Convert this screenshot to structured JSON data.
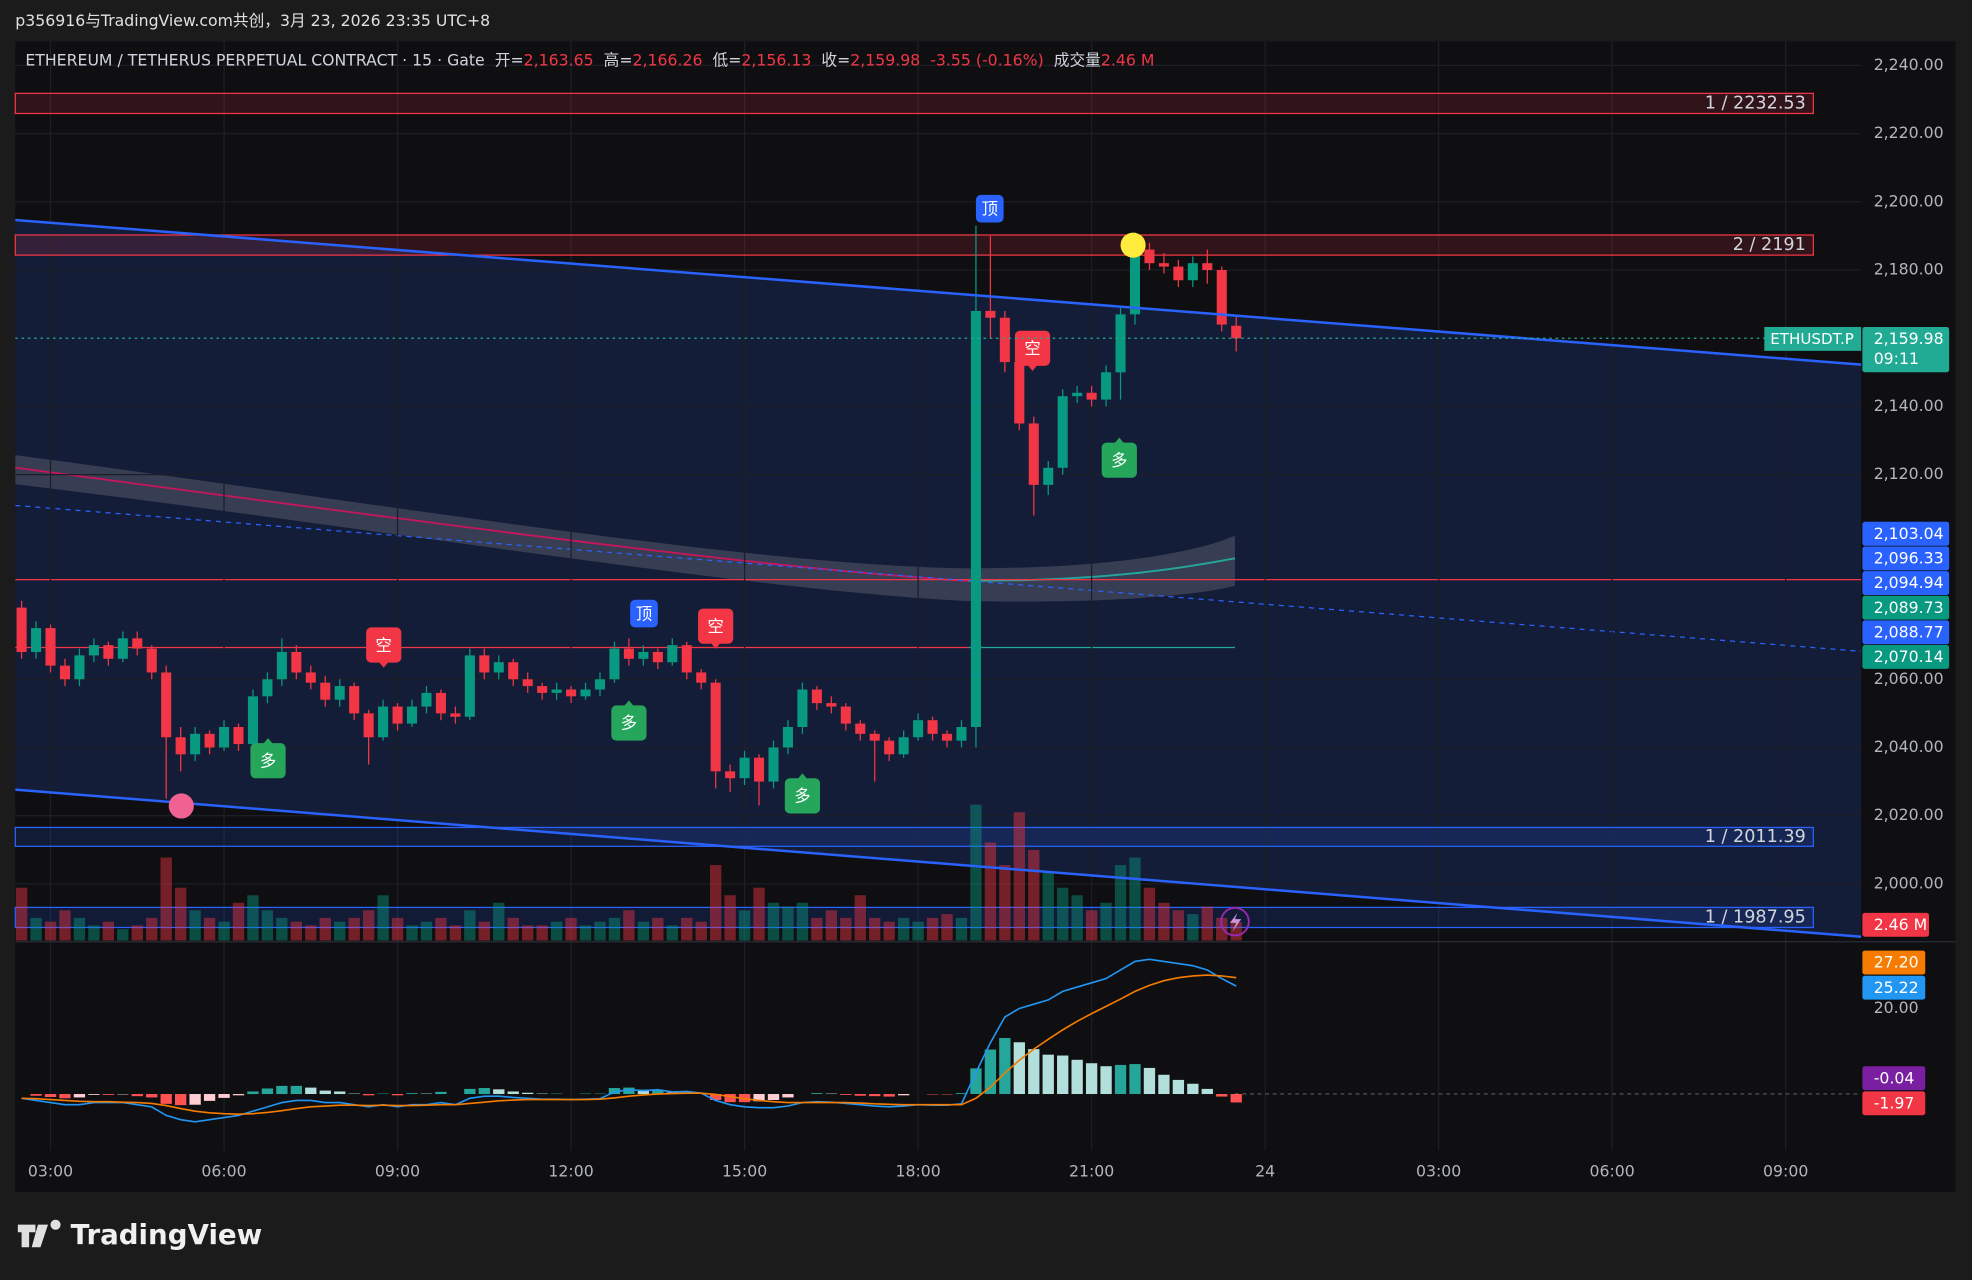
{
  "header": {
    "watermark_line": "p356916与TradingView.com共创，3月 23, 2026 23:35 UTC+8"
  },
  "footer": {
    "brand": "TradingView"
  },
  "chart_data": {
    "type": "candlestick",
    "title": "ETHEREUM / TETHERUS PERPETUAL CONTRACT · 15 · Gate",
    "legend": [
      {
        "label": "开=",
        "value": "2,163.65"
      },
      {
        "label": "高=",
        "value": "2,166.26"
      },
      {
        "label": "低=",
        "value": "2,156.13"
      },
      {
        "label": "收=",
        "value": "2,159.98"
      }
    ],
    "change": "-3.55 (-0.16%)",
    "volume_legend": {
      "label": "成交量",
      "value": "2.46 M"
    },
    "up_color": "#089981",
    "down_color": "#f23645",
    "ylim": [
      1983.4,
      2247
    ],
    "yticks": [
      {
        "value": 2240,
        "label": "2,240.00"
      },
      {
        "value": 2220,
        "label": "2,220.00"
      },
      {
        "value": 2200,
        "label": "2,200.00"
      },
      {
        "value": 2180,
        "label": "2,180.00"
      },
      {
        "value": 2140,
        "label": "2,140.00"
      },
      {
        "value": 2120,
        "label": "2,120.00"
      },
      {
        "value": 2060,
        "label": "2,060.00"
      },
      {
        "value": 2040,
        "label": "2,040.00"
      },
      {
        "value": 2020,
        "label": "2,020.00"
      },
      {
        "value": 2000,
        "label": "2,000.00"
      }
    ],
    "grid": true,
    "x_labels": [
      "03:00",
      "06:00",
      "09:00",
      "12:00",
      "15:00",
      "18:00",
      "21:00",
      "24",
      "03:00",
      "06:00",
      "09:00"
    ],
    "candles": [
      [
        2081,
        2083,
        2066,
        2068
      ],
      [
        2068,
        2077,
        2066,
        2075
      ],
      [
        2075,
        2076,
        2062,
        2064
      ],
      [
        2064,
        2066,
        2058,
        2060
      ],
      [
        2060,
        2069,
        2058,
        2067
      ],
      [
        2067,
        2072,
        2065,
        2070
      ],
      [
        2070,
        2071,
        2064,
        2066
      ],
      [
        2066,
        2074,
        2065,
        2072
      ],
      [
        2072,
        2074,
        2067,
        2069
      ],
      [
        2069,
        2070,
        2060,
        2062
      ],
      [
        2062,
        2064,
        2025,
        2043
      ],
      [
        2043,
        2046,
        2033,
        2038
      ],
      [
        2038,
        2046,
        2036,
        2044
      ],
      [
        2044,
        2045,
        2038,
        2040
      ],
      [
        2040,
        2048,
        2039,
        2046
      ],
      [
        2046,
        2047,
        2039,
        2041
      ],
      [
        2041,
        2057,
        2040,
        2055
      ],
      [
        2055,
        2062,
        2053,
        2060
      ],
      [
        2060,
        2072,
        2058,
        2068
      ],
      [
        2068,
        2070,
        2060,
        2062
      ],
      [
        2062,
        2064,
        2057,
        2059
      ],
      [
        2059,
        2061,
        2052,
        2054
      ],
      [
        2054,
        2060,
        2052,
        2058
      ],
      [
        2058,
        2059,
        2048,
        2050
      ],
      [
        2050,
        2051,
        2035,
        2043
      ],
      [
        2043,
        2054,
        2042,
        2052
      ],
      [
        2052,
        2053,
        2045,
        2047
      ],
      [
        2047,
        2054,
        2046,
        2052
      ],
      [
        2052,
        2058,
        2050,
        2056
      ],
      [
        2056,
        2057,
        2048,
        2050
      ],
      [
        2050,
        2052,
        2047,
        2049
      ],
      [
        2049,
        2069,
        2048,
        2067
      ],
      [
        2067,
        2069,
        2060,
        2062
      ],
      [
        2062,
        2067,
        2060,
        2065
      ],
      [
        2065,
        2066,
        2058,
        2060
      ],
      [
        2060,
        2062,
        2056,
        2058
      ],
      [
        2058,
        2059,
        2054,
        2056
      ],
      [
        2056,
        2059,
        2054,
        2057
      ],
      [
        2057,
        2058,
        2053,
        2055
      ],
      [
        2055,
        2059,
        2054,
        2057
      ],
      [
        2057,
        2062,
        2055,
        2060
      ],
      [
        2060,
        2071,
        2059,
        2069
      ],
      [
        2069,
        2072,
        2064,
        2066
      ],
      [
        2066,
        2070,
        2064,
        2068
      ],
      [
        2068,
        2069,
        2063,
        2065
      ],
      [
        2065,
        2072,
        2064,
        2070
      ],
      [
        2070,
        2071,
        2060,
        2062
      ],
      [
        2062,
        2063,
        2057,
        2059
      ],
      [
        2059,
        2060,
        2028,
        2033
      ],
      [
        2033,
        2035,
        2027,
        2031
      ],
      [
        2031,
        2039,
        2029,
        2037
      ],
      [
        2037,
        2038,
        2023,
        2030
      ],
      [
        2030,
        2042,
        2028,
        2040
      ],
      [
        2040,
        2048,
        2038,
        2046
      ],
      [
        2046,
        2059,
        2044,
        2057
      ],
      [
        2057,
        2058,
        2051,
        2053
      ],
      [
        2053,
        2055,
        2050,
        2052
      ],
      [
        2052,
        2053,
        2045,
        2047
      ],
      [
        2047,
        2048,
        2042,
        2044
      ],
      [
        2044,
        2045,
        2030,
        2042
      ],
      [
        2042,
        2043,
        2036,
        2038
      ],
      [
        2038,
        2045,
        2037,
        2043
      ],
      [
        2043,
        2050,
        2042,
        2048
      ],
      [
        2048,
        2049,
        2042,
        2044
      ],
      [
        2044,
        2045,
        2040,
        2042
      ],
      [
        2042,
        2048,
        2040,
        2046
      ],
      [
        2046,
        2193,
        2040,
        2168
      ],
      [
        2168,
        2190,
        2160,
        2166
      ],
      [
        2166,
        2168,
        2150,
        2153
      ],
      [
        2153,
        2155,
        2133,
        2135
      ],
      [
        2135,
        2137,
        2108,
        2117
      ],
      [
        2117,
        2124,
        2114,
        2122
      ],
      [
        2122,
        2145,
        2120,
        2143
      ],
      [
        2143,
        2146,
        2141,
        2144
      ],
      [
        2144,
        2146,
        2140,
        2142
      ],
      [
        2142,
        2152,
        2140,
        2150
      ],
      [
        2150,
        2169,
        2142,
        2167
      ],
      [
        2167,
        2191,
        2164,
        2186
      ],
      [
        2186,
        2188,
        2180,
        2182
      ],
      [
        2182,
        2185,
        2179,
        2181
      ],
      [
        2181,
        2183,
        2175,
        2177
      ],
      [
        2177,
        2184,
        2175,
        2182
      ],
      [
        2182,
        2186,
        2176,
        2180
      ],
      [
        2180,
        2181,
        2162,
        2164
      ],
      [
        2163.65,
        2166.26,
        2156.13,
        2159.98
      ]
    ],
    "zones": [
      {
        "label": "1 / 2232.53",
        "value": 2232.53,
        "color": "#f23645"
      },
      {
        "label": "2 / 2191",
        "value": 2191,
        "color": "#f23645"
      },
      {
        "label": "1 / 2011.39",
        "value": 2011.39,
        "color": "#2962ff"
      },
      {
        "label": "1 / 1987.95",
        "value": 1987.95,
        "color": "#2962ff"
      }
    ],
    "last_price": {
      "symbol": "ETHUSDT.P",
      "value": 2159.98,
      "label": "2,159.98",
      "countdown": "09:11",
      "color": "#22ab94"
    },
    "axis_badges": [
      {
        "label": "2,103.04",
        "color": "#2962ff"
      },
      {
        "label": "2,096.33",
        "color": "#2962ff"
      },
      {
        "label": "2,094.94",
        "color": "#2962ff"
      },
      {
        "label": "2,089.73",
        "color": "#089981"
      },
      {
        "label": "2,088.77",
        "color": "#2962ff"
      },
      {
        "label": "2,070.14",
        "color": "#089981"
      }
    ],
    "signals": [
      {
        "text": "空",
        "color": "#f23645"
      },
      {
        "text": "空",
        "color": "#f23645"
      },
      {
        "text": "空",
        "color": "#f23645"
      },
      {
        "text": "顶",
        "color": "#2962ff"
      },
      {
        "text": "顶",
        "color": "#2962ff"
      },
      {
        "text": "多",
        "color": "#26a65b"
      },
      {
        "text": "多",
        "color": "#26a65b"
      },
      {
        "text": "多",
        "color": "#26a65b"
      },
      {
        "text": "多",
        "color": "#26a65b"
      }
    ],
    "volume": {
      "values": [
        7,
        3,
        2.5,
        4,
        3,
        2,
        2.5,
        1.5,
        2,
        3,
        11,
        7,
        4,
        3,
        2.5,
        5,
        6,
        4,
        3,
        2.5,
        2,
        3,
        2.5,
        3,
        4,
        6,
        3,
        2,
        2.5,
        3,
        2,
        4,
        2.5,
        5,
        3,
        2,
        2,
        2.5,
        3,
        2,
        2.5,
        3,
        4,
        2.5,
        3,
        2,
        3,
        2.5,
        10,
        6,
        4,
        7,
        5,
        4.5,
        5,
        3,
        4,
        3,
        6,
        3,
        2.5,
        3,
        2.5,
        3,
        3.5,
        3,
        18,
        13,
        10,
        17,
        12,
        9,
        7,
        6,
        4,
        5,
        10,
        11,
        7,
        5,
        4,
        3.5,
        4.5,
        3,
        2.46
      ],
      "last_label": "2.46 M",
      "color": "#f23645"
    },
    "macd": {
      "ylim": [
        -13.2,
        35.3
      ],
      "yticks": [
        {
          "value": 20,
          "label": "20.00"
        }
      ],
      "macd": [
        -1,
        -1.5,
        -2,
        -2.5,
        -2.5,
        -2,
        -2,
        -2,
        -2.5,
        -3,
        -5,
        -6,
        -6.5,
        -6,
        -5.5,
        -5,
        -4,
        -3,
        -2,
        -1.5,
        -1.5,
        -2,
        -2,
        -2.5,
        -3,
        -2.5,
        -3,
        -2.5,
        -2.5,
        -2,
        -2.5,
        -1,
        -0.5,
        -0.5,
        -0.8,
        -1,
        -1.2,
        -1.2,
        -1.3,
        -1.2,
        -1.1,
        0.5,
        1,
        0.8,
        1,
        0.5,
        0.6,
        0.2,
        -1.5,
        -2.5,
        -3,
        -3.2,
        -3.2,
        -2.8,
        -2,
        -1.8,
        -1.9,
        -2.2,
        -2.5,
        -2.8,
        -3,
        -2.8,
        -2.5,
        -2.6,
        -2.6,
        -2.3,
        5,
        12,
        18,
        20,
        21,
        22,
        24,
        25,
        26,
        27,
        29,
        31,
        31.5,
        31,
        30.5,
        30,
        29,
        27,
        25.22
      ],
      "signal": [
        -1,
        -1.1,
        -1.3,
        -1.5,
        -1.7,
        -1.8,
        -1.8,
        -1.9,
        -2,
        -2.2,
        -2.7,
        -3.4,
        -4,
        -4.4,
        -4.6,
        -4.7,
        -4.6,
        -4.3,
        -3.9,
        -3.4,
        -3,
        -2.8,
        -2.6,
        -2.6,
        -2.7,
        -2.6,
        -2.7,
        -2.7,
        -2.6,
        -2.5,
        -2.5,
        -2.2,
        -1.9,
        -1.6,
        -1.4,
        -1.3,
        -1.3,
        -1.3,
        -1.3,
        -1.3,
        -1.2,
        -0.9,
        -0.5,
        -0.2,
        0,
        0.1,
        0.2,
        0.2,
        -0.1,
        -0.6,
        -1.1,
        -1.5,
        -1.8,
        -2,
        -2,
        -2,
        -2,
        -2,
        -2.1,
        -2.3,
        -2.4,
        -2.5,
        -2.5,
        -2.5,
        -2.5,
        -2.5,
        -1,
        1.6,
        4.9,
        7.9,
        10.5,
        12.8,
        15,
        17,
        18.8,
        20.5,
        22.2,
        24,
        25.4,
        26.5,
        27.2,
        27.6,
        27.8,
        27.6,
        27.2
      ],
      "histogram": [
        0,
        -0.4,
        -0.7,
        -1,
        -0.8,
        -0.2,
        -0.2,
        -0.1,
        -0.5,
        -0.8,
        -2.3,
        -2.6,
        -2.5,
        -1.6,
        -0.9,
        -0.3,
        0.6,
        1.3,
        1.9,
        1.9,
        1.5,
        0.8,
        0.6,
        0.1,
        -0.3,
        0.1,
        -0.3,
        0.2,
        0.1,
        0.5,
        0,
        1.2,
        1.4,
        1.1,
        0.6,
        0.3,
        0.1,
        0.1,
        0,
        0.1,
        0.1,
        1.4,
        1.5,
        1,
        1,
        0.4,
        0.4,
        0,
        -1.4,
        -1.9,
        -1.9,
        -1.7,
        -1.4,
        -0.8,
        0,
        0.2,
        0.1,
        -0.2,
        -0.4,
        -0.5,
        -0.6,
        -0.3,
        0,
        -0.1,
        -0.1,
        0.2,
        6,
        10.4,
        13.1,
        12.1,
        10.5,
        9.2,
        9,
        8,
        7.2,
        6.5,
        6.8,
        7,
        6.1,
        4.5,
        3.3,
        2.4,
        1.2,
        -0.6,
        -1.97
      ],
      "macd_color": "#2196f3",
      "signal_color": "#f57c00",
      "badges": [
        {
          "label": "27.20",
          "color": "#f57c00"
        },
        {
          "label": "25.22",
          "color": "#2196f3"
        },
        {
          "label": "-0.04",
          "color": "#7b1fa2"
        },
        {
          "label": "-1.97",
          "color": "#f23645"
        }
      ]
    }
  }
}
